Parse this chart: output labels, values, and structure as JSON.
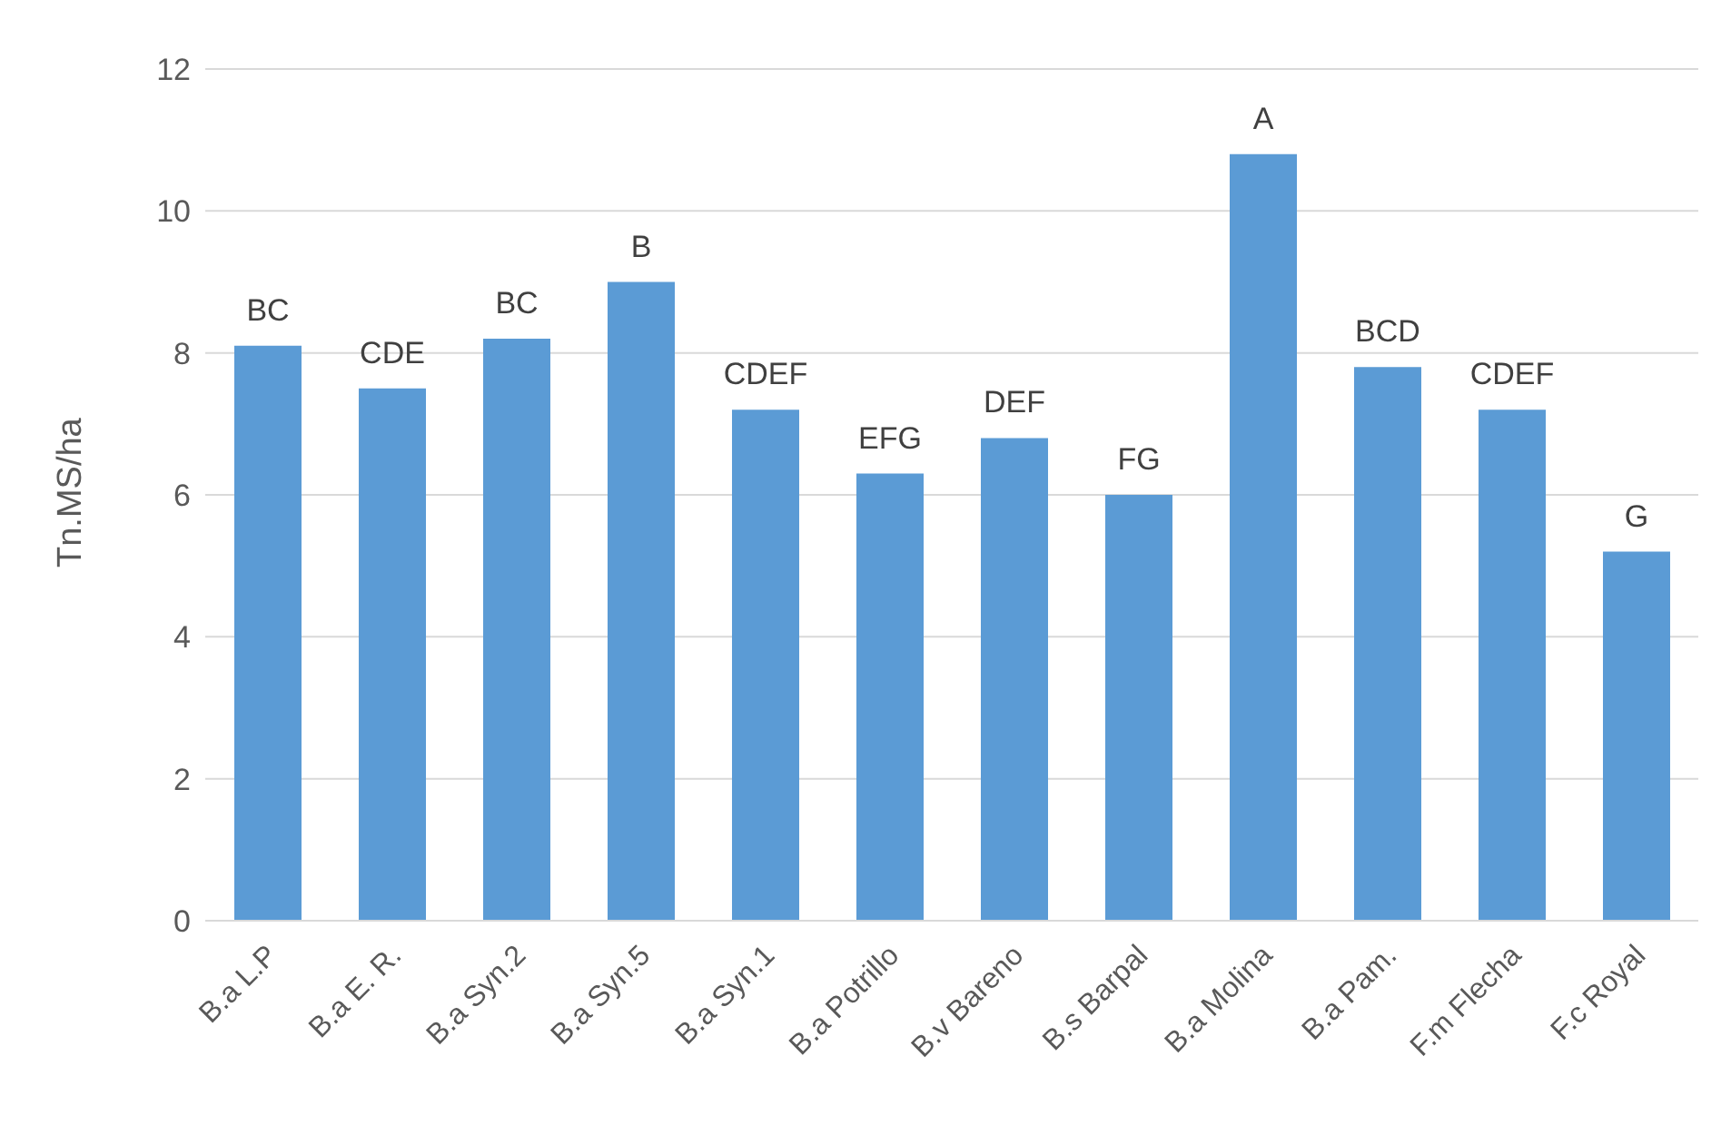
{
  "chart_data": {
    "type": "bar",
    "ylabel": "Tn.MS/ha",
    "categories": [
      "B.a L.P",
      "B.a E. R.",
      "B.a Syn.2",
      "B.a Syn.5",
      "B.a Syn.1",
      "B.a Potrillo",
      "B.v Bareno",
      "B.s Barpal",
      "B.a Molina",
      "B.a Pam.",
      "F.m Flecha",
      "F.c Royal"
    ],
    "values": [
      8.1,
      7.5,
      8.2,
      9.0,
      7.2,
      6.3,
      6.8,
      6.0,
      10.8,
      7.8,
      7.2,
      5.2
    ],
    "value_labels": [
      "BC",
      "CDE",
      "BC",
      "B",
      "CDEF",
      "EFG",
      "DEF",
      "FG",
      "A",
      "BCD",
      "CDEF",
      "G"
    ],
    "color": "#5b9bd5",
    "ylim": [
      0,
      12
    ],
    "yticks": [
      0,
      2,
      4,
      6,
      8,
      10,
      12
    ],
    "grid": "y",
    "legend": false
  }
}
